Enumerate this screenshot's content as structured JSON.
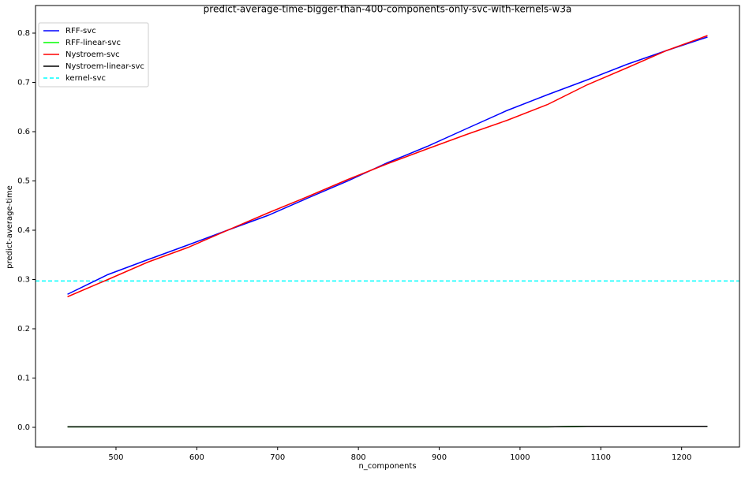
{
  "chart_data": {
    "type": "line",
    "title": "predict-average-time-bigger-than-400-components-only-svc-with-kernels-w3a",
    "xlabel": "n_components",
    "ylabel": "predict-average-time",
    "x": [
      440,
      490,
      539,
      589,
      638,
      688,
      737,
      787,
      836,
      885,
      935,
      984,
      1034,
      1083,
      1133,
      1182,
      1232
    ],
    "series": [
      {
        "name": "RFF-svc",
        "color": "#0000ff",
        "values": [
          0.27,
          0.31,
          0.34,
          0.37,
          0.4,
          0.43,
          0.465,
          0.5,
          0.537,
          0.57,
          0.607,
          0.643,
          0.675,
          0.705,
          0.737,
          0.765,
          0.792
        ]
      },
      {
        "name": "RFF-linear-svc",
        "color": "#00ff00",
        "values": [
          0.001,
          0.001,
          0.001,
          0.001,
          0.001,
          0.001,
          0.001,
          0.001,
          0.001,
          0.001,
          0.001,
          0.001,
          0.001,
          0.002,
          0.002,
          0.002,
          0.002
        ]
      },
      {
        "name": "Nystroem-svc",
        "color": "#ff0000",
        "values": [
          0.265,
          0.3,
          0.335,
          0.365,
          0.4,
          0.435,
          0.468,
          0.503,
          0.535,
          0.565,
          0.595,
          0.623,
          0.655,
          0.695,
          0.73,
          0.765,
          0.795
        ]
      },
      {
        "name": "Nystroem-linear-svc",
        "color": "#000000",
        "values": [
          0.001,
          0.001,
          0.001,
          0.001,
          0.001,
          0.001,
          0.001,
          0.001,
          0.001,
          0.001,
          0.001,
          0.001,
          0.001,
          0.002,
          0.002,
          0.002,
          0.002
        ]
      }
    ],
    "hlines": [
      {
        "name": "kernel-svc",
        "color": "#00ffff",
        "value": 0.297,
        "dash": true
      }
    ],
    "xlim": [
      400.4,
      1271.6
    ],
    "ylim": [
      -0.04,
      0.856
    ],
    "xticks": [
      500,
      600,
      700,
      800,
      900,
      1000,
      1100,
      1200
    ],
    "yticks": [
      {
        "value": 0,
        "label": "0.0"
      },
      0.1,
      0.2,
      0.3,
      0.4,
      0.5,
      0.6,
      0.7,
      0.8
    ],
    "legend": "upper left"
  }
}
